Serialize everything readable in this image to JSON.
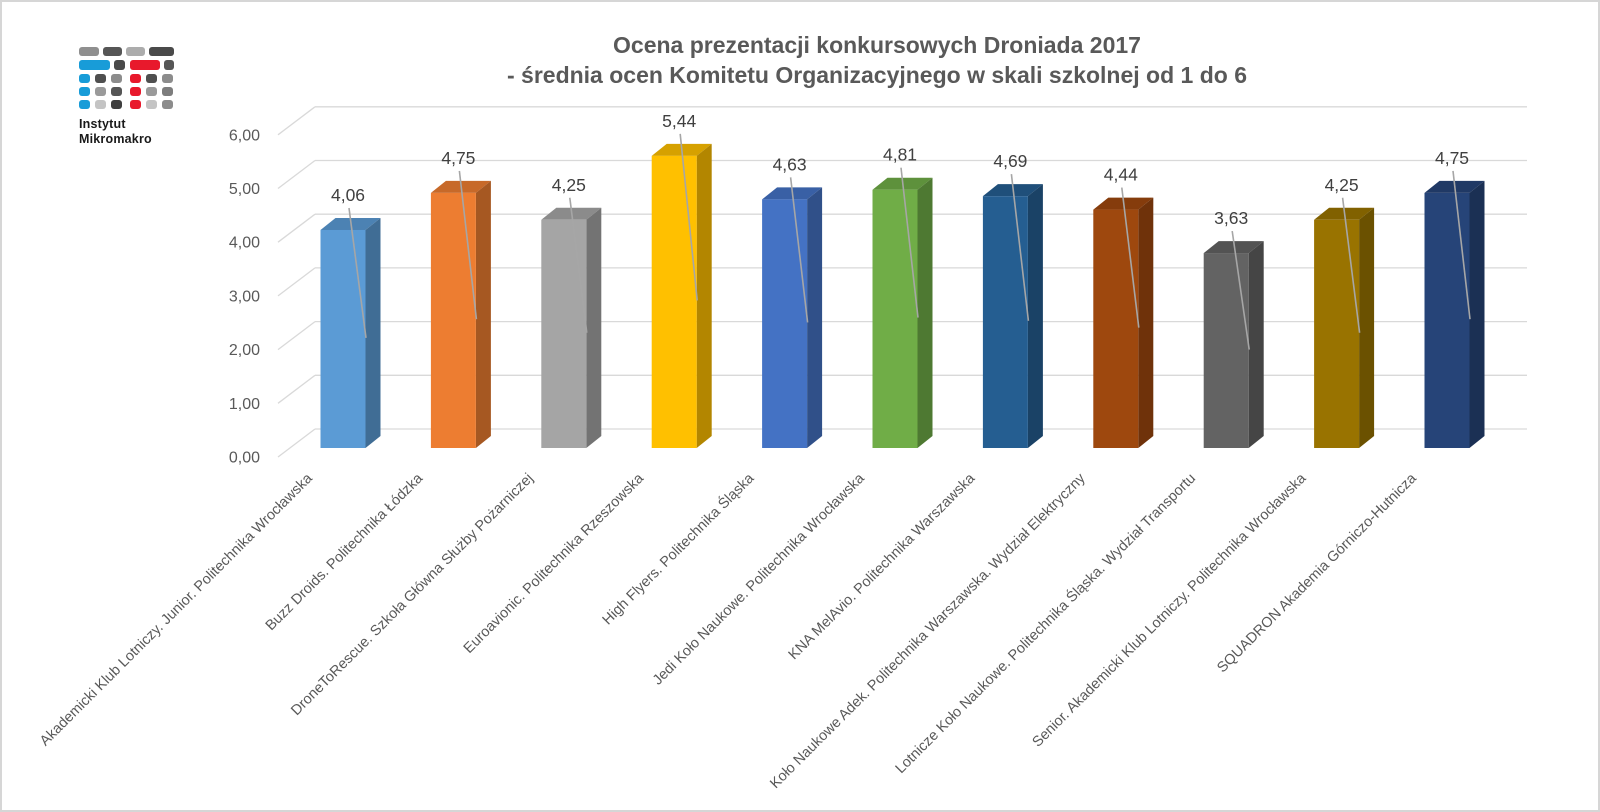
{
  "logo": {
    "name": "instytut-mikromakro-logo",
    "line1": "Instytut",
    "line2": "Mikromakro",
    "brand_blue": "#189CD8",
    "brand_red": "#E8192C"
  },
  "chart_data": {
    "type": "bar",
    "style_3d": true,
    "title": "Ocena prezentacji konkursowych Droniada 2017 - średnia ocen Komitetu Organizacyjnego w skali szkolnej od 1 do 6",
    "title_line1": "Ocena prezentacji konkursowych Droniada 2017",
    "title_line2": "- średnia ocen Komitetu Organizacyjnego w skali szkolnej od 1 do 6",
    "categories": [
      "Akademicki Klub Lotniczy. Junior. Politechnika Wrocławska",
      "Buzz Droids. Politechnika Łódzka",
      "DroneToRescue. Szkoła Główna Służby Pożarniczej",
      "Euroavionic. Politechnika Rzeszowska",
      "High Flyers. Politechnika Śląska",
      "Jedi Koło Naukowe. Politechnika Wrocławska",
      "KNA MelAvio. Politechnika Warszawska",
      "Koło Naukowe Adek. Politechnika Warszawska. Wydział Elektryczny",
      "Lotnicze Koło Naukowe. Politechnika Śląska. Wydział Transportu",
      "Senior. Akademicki Klub Lotniczy. Politechnika Wrocławska",
      "SQUADRON Akademia Górniczo-Hutnicza"
    ],
    "values": [
      4.06,
      4.75,
      4.25,
      5.44,
      4.63,
      4.81,
      4.69,
      4.44,
      3.63,
      4.25,
      4.75
    ],
    "value_labels": [
      "4,06",
      "4,75",
      "4,25",
      "5,44",
      "4,63",
      "4,81",
      "4,69",
      "4,44",
      "3,63",
      "4,25",
      "4,75"
    ],
    "bar_colors": [
      "#5B9BD5",
      "#ED7D31",
      "#A5A5A5",
      "#FFC000",
      "#4472C4",
      "#70AD47",
      "#255E91",
      "#9E480E",
      "#636363",
      "#997300",
      "#264478"
    ],
    "y_ticks": [
      "0,00",
      "1,00",
      "2,00",
      "3,00",
      "4,00",
      "5,00",
      "6,00"
    ],
    "ylim": [
      0,
      6
    ],
    "xlabel": "",
    "ylabel": "",
    "grid": true,
    "legend": "none",
    "decimal_separator": ","
  },
  "theme": {
    "background": "#FFFFFF",
    "frame_border": "#D6D6D6",
    "gridline_color": "#D9D9D9",
    "leader_line_color": "#A6A6A6",
    "title_color": "#595959",
    "axis_text_color": "#595959",
    "value_label_color": "#404040"
  }
}
